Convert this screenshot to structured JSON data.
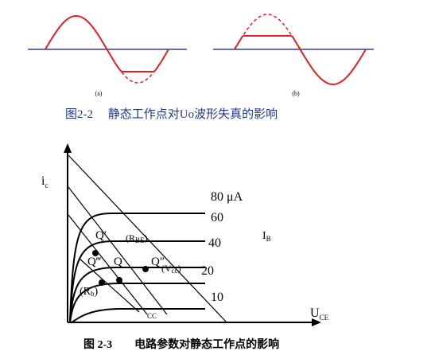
{
  "figure_1": {
    "panel_labels": [
      "(a)",
      "(b)"
    ],
    "caption": "图2-2　 静态工作点对Uo波形失真的影响"
  },
  "figure_2": {
    "y_axis": {
      "main": "i",
      "sub": "c"
    },
    "x_axis": {
      "main": "U",
      "sub": "CE"
    },
    "ib_label": {
      "main": "I",
      "sub": "B"
    },
    "curve_labels": [
      "80 μA",
      "60",
      "40",
      "20",
      "10"
    ],
    "points": [
      "Q′",
      "Q‴",
      "Q",
      "Q″"
    ],
    "annotations": [
      {
        "main": "(R",
        "sub": "BE",
        "end": ")"
      },
      {
        "main": "(V",
        "sub": "cc",
        "end": ")"
      },
      {
        "main": "(R",
        "sub": "b",
        "end": ")"
      },
      {
        "main": "",
        "sub": "CC",
        "end": ""
      }
    ],
    "caption": "图 2-3　　电路参数对静态工作点的影响"
  }
}
